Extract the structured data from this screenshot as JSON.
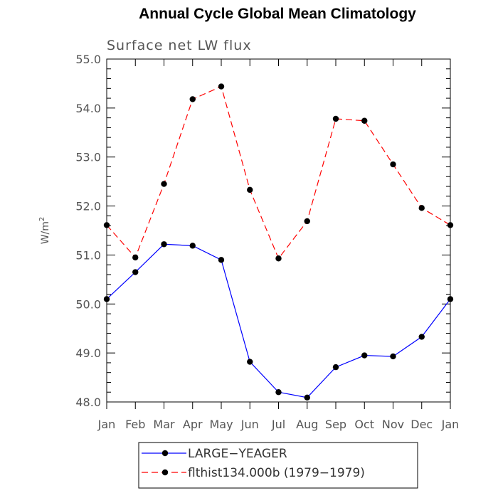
{
  "chart_data": {
    "type": "line",
    "title": "Annual Cycle Global Mean Climatology",
    "subtitle": "Surface net LW flux",
    "ylabel": "W/m",
    "ylabel_sup": "2",
    "xlabel": "",
    "categories": [
      "Jan",
      "Feb",
      "Mar",
      "Apr",
      "May",
      "Jun",
      "Jul",
      "Aug",
      "Sep",
      "Oct",
      "Nov",
      "Dec",
      "Jan"
    ],
    "ylim": [
      48.0,
      55.0
    ],
    "yticks": [
      "48.0",
      "49.0",
      "50.0",
      "51.0",
      "52.0",
      "53.0",
      "54.0",
      "55.0"
    ],
    "grid": false,
    "legend_position": "bottom",
    "series": [
      {
        "name": "LARGE−YEAGER",
        "color": "#0000ff",
        "dash": "solid",
        "values": [
          50.1,
          50.65,
          51.22,
          51.19,
          50.9,
          48.82,
          48.2,
          48.09,
          48.71,
          48.95,
          48.93,
          49.33,
          50.1
        ]
      },
      {
        "name": "flthist134.000b (1979−1979)",
        "color": "#ff0000",
        "dash": "dashed",
        "values": [
          51.61,
          50.95,
          52.45,
          54.18,
          54.44,
          52.33,
          50.93,
          51.69,
          53.78,
          53.74,
          52.85,
          51.96,
          51.61
        ]
      }
    ]
  }
}
